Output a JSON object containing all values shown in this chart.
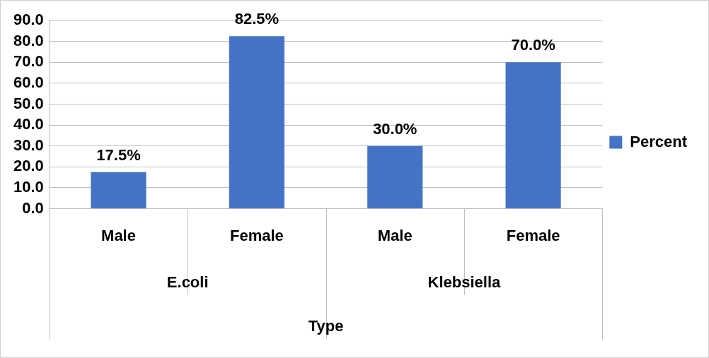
{
  "chart_data": {
    "type": "bar",
    "xlabel": "Type",
    "categories": [
      "Male",
      "Female",
      "Male",
      "Female"
    ],
    "annotations": [
      "E.coli",
      "Klebsiella"
    ],
    "series": [
      {
        "name": "Percent",
        "color": "#4472c4",
        "values": [
          17.5,
          82.5,
          30.0,
          70.0
        ],
        "value_labels": [
          "17.5%",
          "82.5%",
          "30.0%",
          "70.0%"
        ]
      }
    ],
    "ylim": [
      0,
      90
    ],
    "yticks": [
      {
        "value": 0,
        "label": "0.0"
      },
      {
        "value": 10,
        "label": "10.0"
      },
      {
        "value": 20,
        "label": "20.0"
      },
      {
        "value": 30,
        "label": "30.0"
      },
      {
        "value": 40,
        "label": "40.0"
      },
      {
        "value": 50,
        "label": "50.0"
      },
      {
        "value": 60,
        "label": "60.0"
      },
      {
        "value": 70,
        "label": "70.0"
      },
      {
        "value": 80,
        "label": "80.0"
      },
      {
        "value": 90,
        "label": "90.0"
      }
    ],
    "grid": "y",
    "legend": "right"
  }
}
